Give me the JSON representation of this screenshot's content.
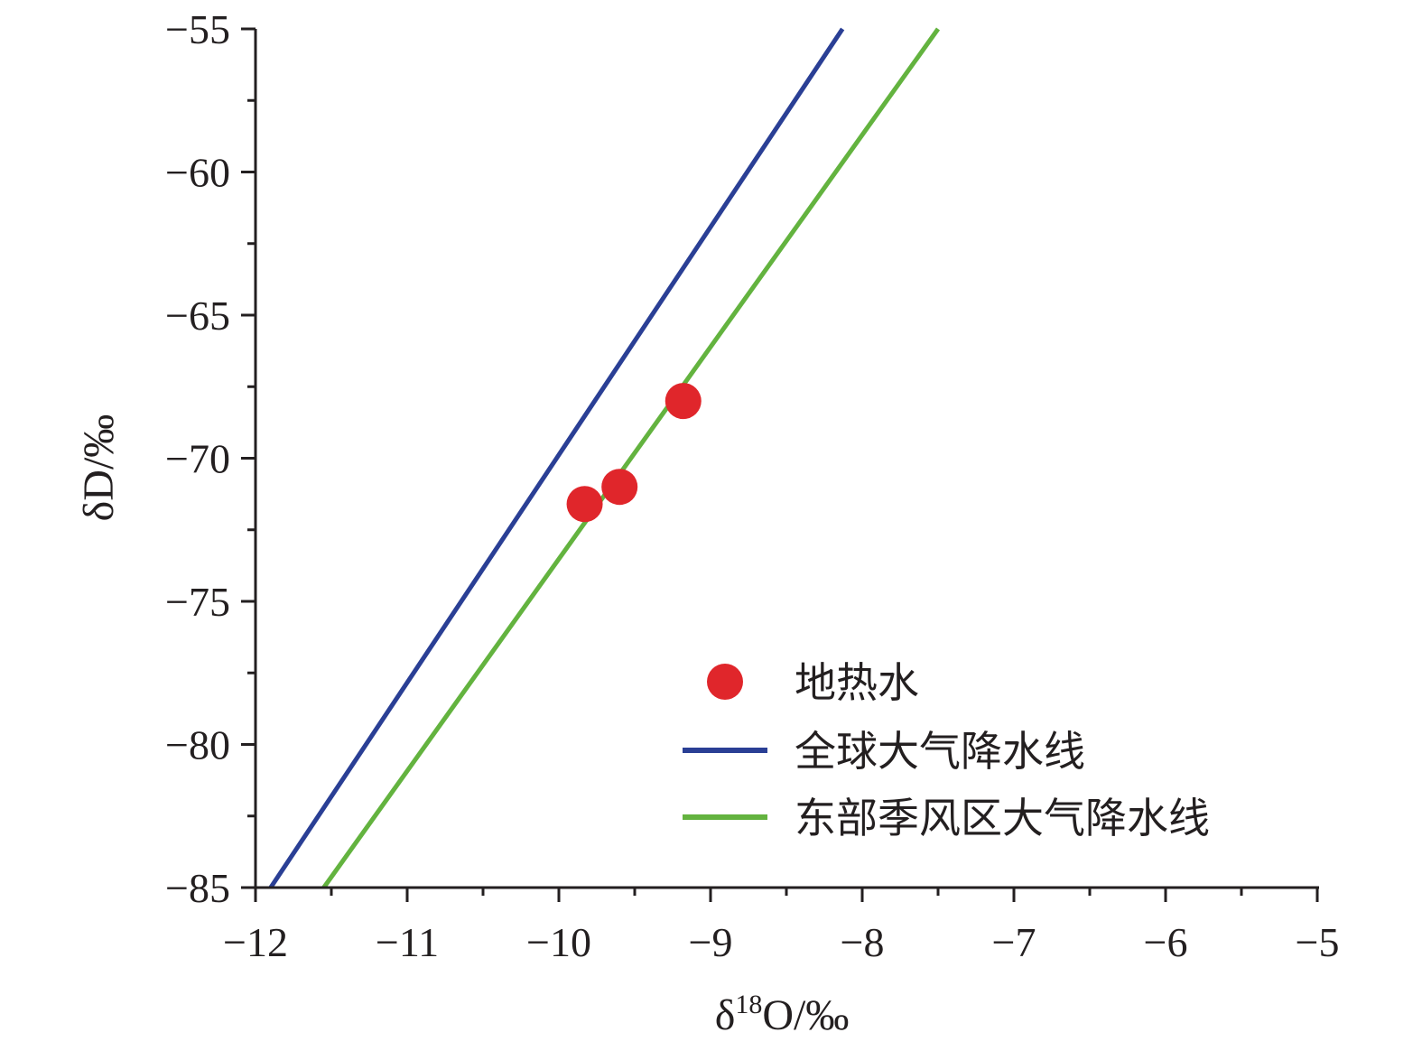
{
  "chart_data": {
    "type": "scatter",
    "xlabel_prefix": "δ",
    "xlabel_sup": "18",
    "xlabel_suffix": "O/‰",
    "ylabel": "δD/‰",
    "xlim": [
      -12,
      -5
    ],
    "ylim": [
      -85,
      -55
    ],
    "x_ticks": [
      -12,
      -11,
      -10,
      -9,
      -8,
      -7,
      -6,
      -5
    ],
    "y_ticks": [
      -85,
      -80,
      -75,
      -70,
      -65,
      -60,
      -55
    ],
    "x_tick_labels": [
      "−12",
      "−11",
      "−10",
      "−9",
      "−8",
      "−7",
      "−6",
      "−5"
    ],
    "y_tick_labels": [
      "−85",
      "−80",
      "−75",
      "−70",
      "−65",
      "−60",
      "−55"
    ],
    "series": [
      {
        "name": "地热水",
        "kind": "points",
        "color": "#e0262b",
        "points": [
          [
            -9.83,
            -71.6
          ],
          [
            -9.6,
            -71.0
          ],
          [
            -9.18,
            -68.0
          ]
        ]
      },
      {
        "name": "全球大气降水线",
        "kind": "line",
        "color": "#2a3f95",
        "points": [
          [
            -11.9,
            -85.0
          ],
          [
            -8.13,
            -55.0
          ]
        ]
      },
      {
        "name": "东部季风区大气降水线",
        "kind": "line",
        "color": "#63b33f",
        "points": [
          [
            -11.55,
            -85.0
          ],
          [
            -7.5,
            -55.0
          ]
        ]
      }
    ],
    "legend_position": "bottom-right",
    "grid": false
  }
}
